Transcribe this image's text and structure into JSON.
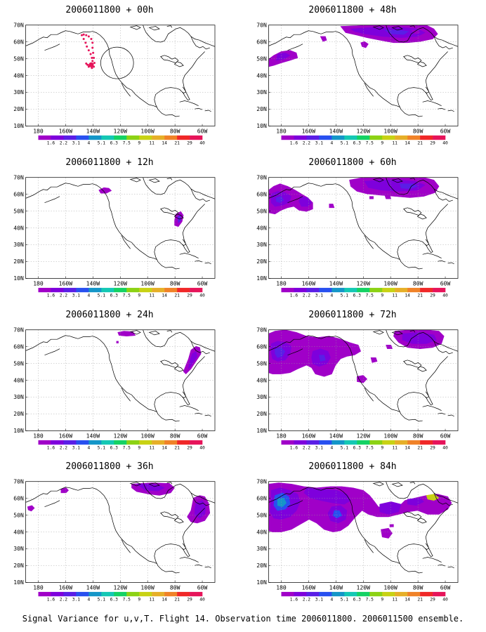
{
  "caption": "Signal Variance for u,v,T. Flight 14. Observation time 2006011800. 2006011500 ensemble.",
  "lat_labels": [
    "70N",
    "60N",
    "50N",
    "40N",
    "30N",
    "20N",
    "10N"
  ],
  "lon_labels": [
    "180",
    "160W",
    "140W",
    "120W",
    "100W",
    "80W",
    "60W"
  ],
  "colorbar": {
    "labels": [
      "1.6",
      "2.2",
      "3.1",
      "4",
      "5.1",
      "6.3",
      "7.5",
      "9",
      "11",
      "14",
      "21",
      "29",
      "40"
    ],
    "colors": [
      "#a000c8",
      "#7e00dc",
      "#5a1ee6",
      "#2850f0",
      "#1496c8",
      "#14c8b4",
      "#14d264",
      "#8cd214",
      "#c8d214",
      "#e6af28",
      "#f08228",
      "#f02828",
      "#e6145a"
    ]
  },
  "panels": [
    {
      "id": "p00",
      "title": "2006011800 + 00h"
    },
    {
      "id": "p12",
      "title": "2006011800 + 12h"
    },
    {
      "id": "p24",
      "title": "2006011800 + 24h"
    },
    {
      "id": "p36",
      "title": "2006011800 + 36h"
    },
    {
      "id": "p48",
      "title": "2006011800 + 48h"
    },
    {
      "id": "p60",
      "title": "2006011800 + 60h"
    },
    {
      "id": "p72",
      "title": "2006011800 + 72h"
    },
    {
      "id": "p84",
      "title": "2006011800 + 84h"
    }
  ]
}
